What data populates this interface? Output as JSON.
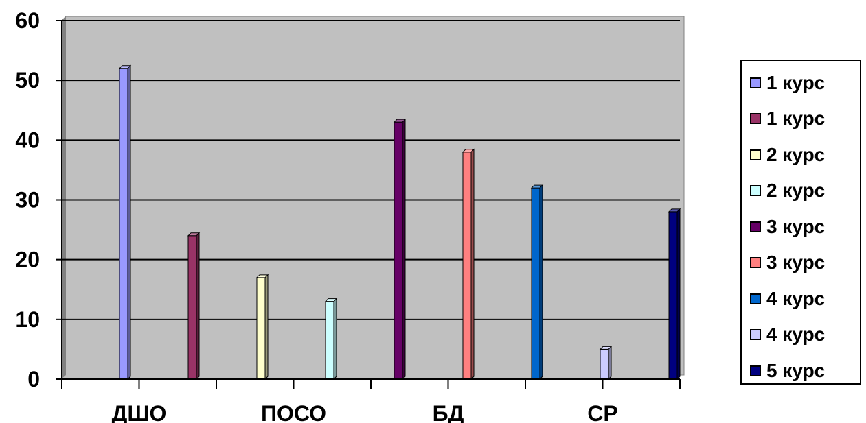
{
  "chart_data": {
    "type": "bar",
    "title": "",
    "xlabel": "",
    "ylabel": "",
    "ylim": [
      0,
      60
    ],
    "yticks": [
      "0",
      "10",
      "20",
      "30",
      "40",
      "50",
      "60"
    ],
    "categories": [
      "ДШО",
      "ПОСО",
      "БД",
      "СР"
    ],
    "grid": true,
    "legend_position": "right",
    "plot_background": "#c0c0c0",
    "series": [
      {
        "name": "1 курс",
        "value": 52,
        "color": "#9999ff"
      },
      {
        "name": "1 курс",
        "value": 24,
        "color": "#993366"
      },
      {
        "name": "2 курс",
        "value": 17,
        "color": "#ffffcc"
      },
      {
        "name": "2 курс",
        "value": 13,
        "color": "#ccffff"
      },
      {
        "name": "3 курс",
        "value": 43,
        "color": "#660066"
      },
      {
        "name": "3 курс",
        "value": 38,
        "color": "#ff8080"
      },
      {
        "name": "4 курс",
        "value": 32,
        "color": "#0066cc"
      },
      {
        "name": "4 курс",
        "value": 5,
        "color": "#ccccff"
      },
      {
        "name": "5 курс",
        "value": 28,
        "color": "#000080"
      }
    ]
  }
}
